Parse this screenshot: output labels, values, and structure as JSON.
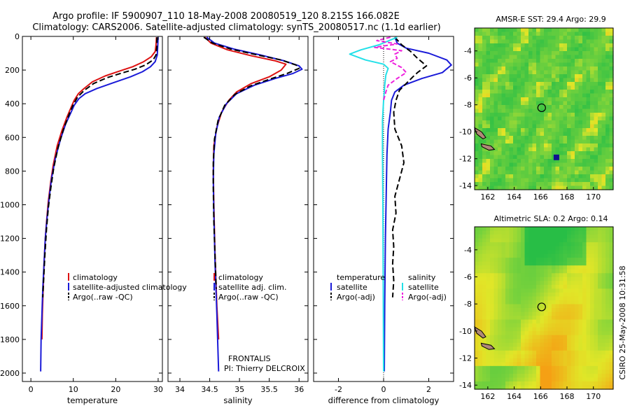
{
  "header": {
    "line1": "Argo profile: IF 5900907_110 18-May-2008 20080519_120 8.215S 166.082E",
    "line2": "Climatology: CARS2006. Satellite-adjusted climatology: synTS_20080517.nc (1.1d earlier)"
  },
  "side_label": "CSIRO 25-May-2008 10:31:58",
  "colors": {
    "climatology": "#dd1111",
    "satellite": "#1a1ad8",
    "argo": "#000000",
    "sat_cyan": "#22e0e8",
    "argo_magenta": "#ee22dd"
  },
  "chart_data": [
    {
      "id": "temperature",
      "type": "line",
      "xlabel": "temperature",
      "ylabel": "",
      "xlim": [
        -2,
        31
      ],
      "ylim": [
        2050,
        0
      ],
      "xticks": [
        0,
        10,
        20,
        30
      ],
      "yticks": [
        0,
        200,
        400,
        600,
        800,
        1000,
        1200,
        1400,
        1600,
        1800,
        2000
      ],
      "legend": {
        "placement": "bottom-right",
        "entries": [
          "climatology",
          "satellite-adjusted climatology",
          "Argo(..raw -QC)"
        ]
      },
      "series": [
        {
          "name": "climatology",
          "color": "#dd1111",
          "dash": "",
          "points": [
            [
              29.6,
              5
            ],
            [
              29.5,
              50
            ],
            [
              29.3,
              90
            ],
            [
              28.4,
              120
            ],
            [
              26.6,
              150
            ],
            [
              24.0,
              180
            ],
            [
              21.0,
              205
            ],
            [
              17.5,
              235
            ],
            [
              14.5,
              270
            ],
            [
              12.5,
              310
            ],
            [
              11.2,
              340
            ],
            [
              10.2,
              380
            ],
            [
              9.5,
              420
            ],
            [
              8.5,
              480
            ],
            [
              7.3,
              560
            ],
            [
              6.2,
              650
            ],
            [
              5.3,
              760
            ],
            [
              4.7,
              860
            ],
            [
              4.1,
              980
            ],
            [
              3.7,
              1100
            ],
            [
              3.4,
              1200
            ],
            [
              3.1,
              1350
            ],
            [
              2.9,
              1500
            ],
            [
              2.7,
              1650
            ],
            [
              2.6,
              1800
            ]
          ]
        },
        {
          "name": "satellite-adjusted climatology",
          "color": "#1a1ad8",
          "dash": "",
          "points": [
            [
              30.0,
              5
            ],
            [
              29.9,
              60
            ],
            [
              29.8,
              110
            ],
            [
              29.3,
              150
            ],
            [
              28.2,
              180
            ],
            [
              26.3,
              210
            ],
            [
              23.5,
              240
            ],
            [
              19.5,
              275
            ],
            [
              15.5,
              310
            ],
            [
              12.8,
              340
            ],
            [
              11.3,
              370
            ],
            [
              10.2,
              410
            ],
            [
              9.3,
              460
            ],
            [
              8.2,
              520
            ],
            [
              7.0,
              610
            ],
            [
              5.8,
              720
            ],
            [
              4.9,
              840
            ],
            [
              4.3,
              960
            ],
            [
              3.8,
              1080
            ],
            [
              3.4,
              1200
            ],
            [
              3.1,
              1350
            ],
            [
              2.8,
              1500
            ],
            [
              2.6,
              1650
            ],
            [
              2.4,
              1800
            ],
            [
              2.3,
              1990
            ]
          ]
        },
        {
          "name": "Argo(..raw -QC)",
          "color": "#000000",
          "dash": "8,4",
          "points": [
            [
              29.7,
              5
            ],
            [
              29.7,
              60
            ],
            [
              29.5,
              110
            ],
            [
              28.8,
              140
            ],
            [
              27.0,
              170
            ],
            [
              24.5,
              195
            ],
            [
              21.8,
              215
            ],
            [
              18.0,
              245
            ],
            [
              14.8,
              280
            ],
            [
              12.6,
              320
            ],
            [
              11.0,
              360
            ],
            [
              9.9,
              410
            ],
            [
              8.9,
              470
            ],
            [
              7.7,
              550
            ],
            [
              6.4,
              660
            ],
            [
              5.4,
              780
            ],
            [
              4.7,
              900
            ],
            [
              4.1,
              1020
            ],
            [
              3.7,
              1140
            ],
            [
              3.3,
              1300
            ],
            [
              3.0,
              1450
            ],
            [
              2.8,
              1550
            ]
          ]
        }
      ]
    },
    {
      "id": "salinity",
      "type": "line",
      "xlabel": "salinity",
      "ylabel": "",
      "xlim": [
        33.8,
        36.15
      ],
      "ylim": [
        2050,
        0
      ],
      "xticks": [
        34,
        34.5,
        35,
        35.5,
        36
      ],
      "yticks": [
        0,
        200,
        400,
        600,
        800,
        1000,
        1200,
        1400,
        1600,
        1800,
        2000
      ],
      "legend": {
        "placement": "bottom-right",
        "entries": [
          "climatology",
          "satellite adj. clim.",
          "Argo(..raw -QC)"
        ]
      },
      "annotation": [
        "FRONTALIS",
        "PI: Thierry DELCROIX"
      ],
      "series": [
        {
          "name": "climatology",
          "color": "#dd1111",
          "dash": "",
          "points": [
            [
              34.42,
              5
            ],
            [
              34.52,
              40
            ],
            [
              34.8,
              80
            ],
            [
              35.2,
              115
            ],
            [
              35.6,
              145
            ],
            [
              35.78,
              165
            ],
            [
              35.7,
              200
            ],
            [
              35.5,
              240
            ],
            [
              35.2,
              280
            ],
            [
              34.95,
              330
            ],
            [
              34.82,
              380
            ],
            [
              34.7,
              450
            ],
            [
              34.62,
              540
            ],
            [
              34.57,
              650
            ],
            [
              34.56,
              800
            ],
            [
              34.57,
              1000
            ],
            [
              34.59,
              1300
            ],
            [
              34.62,
              1600
            ],
            [
              34.65,
              1800
            ]
          ]
        },
        {
          "name": "satellite adj. clim.",
          "color": "#1a1ad8",
          "dash": "",
          "points": [
            [
              34.45,
              5
            ],
            [
              34.58,
              40
            ],
            [
              34.9,
              75
            ],
            [
              35.35,
              110
            ],
            [
              35.75,
              145
            ],
            [
              36.0,
              175
            ],
            [
              36.05,
              195
            ],
            [
              35.9,
              220
            ],
            [
              35.6,
              250
            ],
            [
              35.25,
              290
            ],
            [
              34.95,
              340
            ],
            [
              34.78,
              400
            ],
            [
              34.66,
              480
            ],
            [
              34.6,
              580
            ],
            [
              34.57,
              700
            ],
            [
              34.56,
              850
            ],
            [
              34.57,
              1050
            ],
            [
              34.59,
              1350
            ],
            [
              34.62,
              1650
            ],
            [
              34.65,
              1990
            ]
          ]
        },
        {
          "name": "Argo(..raw -QC)",
          "color": "#000000",
          "dash": "8,4",
          "points": [
            [
              34.4,
              5
            ],
            [
              34.55,
              40
            ],
            [
              34.85,
              75
            ],
            [
              35.3,
              110
            ],
            [
              35.7,
              140
            ],
            [
              35.95,
              170
            ],
            [
              36.0,
              190
            ],
            [
              35.8,
              220
            ],
            [
              35.5,
              255
            ],
            [
              35.18,
              295
            ],
            [
              34.92,
              345
            ],
            [
              34.75,
              410
            ],
            [
              34.64,
              500
            ],
            [
              34.58,
              610
            ],
            [
              34.56,
              750
            ],
            [
              34.56,
              900
            ],
            [
              34.57,
              1100
            ],
            [
              34.59,
              1300
            ],
            [
              34.61,
              1500
            ]
          ]
        }
      ]
    },
    {
      "id": "difference",
      "type": "line",
      "xlabel": "difference from climatology",
      "ylabel": "",
      "xlim": [
        -3.1,
        3.1
      ],
      "ylim": [
        2050,
        0
      ],
      "xticks": [
        -2,
        0,
        2
      ],
      "yticks": [
        0,
        200,
        400,
        600,
        800,
        1000,
        1200,
        1400,
        1600,
        1800,
        2000
      ],
      "legend": {
        "placement": "bottom",
        "headers": [
          "temperature",
          "salinity"
        ],
        "entries": [
          "satellite",
          "Argo(-adj)",
          "satellite",
          "Argo(-adj)"
        ]
      },
      "series": [
        {
          "name": "temperature satellite",
          "color": "#1a1ad8",
          "dash": "",
          "points": [
            [
              0.5,
              5
            ],
            [
              0.6,
              40
            ],
            [
              1.0,
              70
            ],
            [
              2.0,
              100
            ],
            [
              2.8,
              140
            ],
            [
              3.0,
              170
            ],
            [
              2.6,
              215
            ],
            [
              1.7,
              250
            ],
            [
              0.9,
              290
            ],
            [
              0.5,
              330
            ],
            [
              0.35,
              380
            ],
            [
              0.3,
              450
            ],
            [
              0.2,
              550
            ],
            [
              0.15,
              700
            ],
            [
              0.12,
              900
            ],
            [
              0.08,
              1200
            ],
            [
              0.05,
              1600
            ],
            [
              0.03,
              1990
            ]
          ]
        },
        {
          "name": "temperature Argo(-adj)",
          "color": "#000000",
          "dash": "8,4",
          "points": [
            [
              0.5,
              5
            ],
            [
              0.8,
              50
            ],
            [
              1.2,
              90
            ],
            [
              1.5,
              130
            ],
            [
              1.9,
              175
            ],
            [
              1.5,
              215
            ],
            [
              1.3,
              240
            ],
            [
              1.0,
              280
            ],
            [
              0.7,
              320
            ],
            [
              0.55,
              380
            ],
            [
              0.45,
              450
            ],
            [
              0.5,
              550
            ],
            [
              0.8,
              650
            ],
            [
              0.9,
              750
            ],
            [
              0.7,
              850
            ],
            [
              0.5,
              950
            ],
            [
              0.55,
              1050
            ],
            [
              0.4,
              1150
            ],
            [
              0.45,
              1250
            ],
            [
              0.4,
              1350
            ],
            [
              0.45,
              1450
            ],
            [
              0.4,
              1550
            ]
          ]
        },
        {
          "name": "salinity satellite",
          "color": "#22e0e8",
          "dash": "",
          "points": [
            [
              0.6,
              5
            ],
            [
              -0.2,
              50
            ],
            [
              -1.0,
              80
            ],
            [
              -1.5,
              105
            ],
            [
              -0.8,
              140
            ],
            [
              0.0,
              165
            ],
            [
              0.2,
              190
            ],
            [
              0.1,
              230
            ],
            [
              0.05,
              290
            ],
            [
              0.0,
              380
            ],
            [
              -0.05,
              500
            ],
            [
              -0.05,
              700
            ],
            [
              -0.03,
              1000
            ],
            [
              -0.02,
              1400
            ],
            [
              0.0,
              1990
            ]
          ]
        },
        {
          "name": "salinity Argo(-adj)",
          "color": "#ee22dd",
          "dash": "6,3",
          "points": [
            [
              0.3,
              5
            ],
            [
              -0.3,
              25
            ],
            [
              0.6,
              45
            ],
            [
              -0.4,
              65
            ],
            [
              0.8,
              85
            ],
            [
              0.5,
              105
            ],
            [
              0.6,
              130
            ],
            [
              0.3,
              150
            ],
            [
              0.8,
              185
            ],
            [
              1.0,
              215
            ],
            [
              0.6,
              250
            ],
            [
              0.2,
              290
            ],
            [
              0.1,
              330
            ],
            [
              0.0,
              380
            ]
          ]
        }
      ]
    },
    {
      "id": "sst_map",
      "type": "heatmap",
      "title": "AMSR-E SST: 29.4 Argo: 29.9",
      "xlim": [
        161,
        171.5
      ],
      "ylim": [
        -14.3,
        -2.3
      ],
      "xticks": [
        162,
        164,
        166,
        168,
        170
      ],
      "yticks": [
        -4,
        -6,
        -8,
        -10,
        -12,
        -14
      ],
      "argo_position": [
        166.08,
        -8.22
      ],
      "marker_square": [
        167.2,
        -11.9
      ]
    },
    {
      "id": "sla_map",
      "type": "heatmap",
      "title": "Altimetric SLA: 0.2 Argo: 0.14",
      "xlim": [
        161,
        171.5
      ],
      "ylim": [
        -14.3,
        -2.3
      ],
      "xticks": [
        162,
        164,
        166,
        168,
        170
      ],
      "yticks": [
        -4,
        -6,
        -8,
        -10,
        -12,
        -14
      ],
      "argo_position": [
        166.08,
        -8.22
      ]
    }
  ]
}
